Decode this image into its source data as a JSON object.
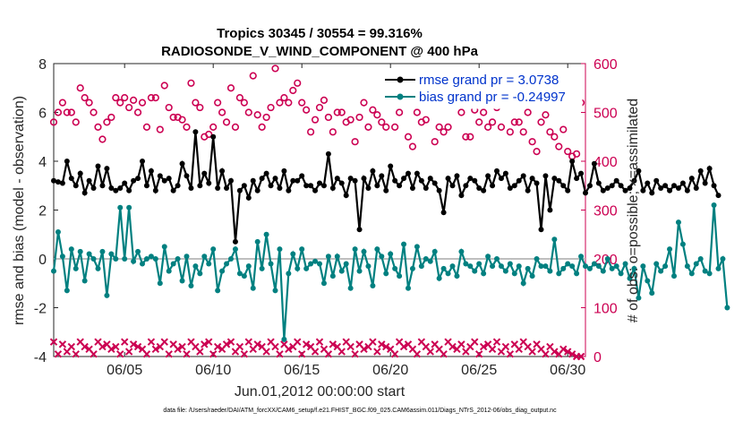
{
  "colors": {
    "rmse": "#000000",
    "bias": "#008080",
    "obs": "#cc0052",
    "zero": "#bfbfbf",
    "legend_text": "#0033cc",
    "axis": "#262626"
  },
  "chart_data": {
    "type": "line",
    "title_line1": "Tropics 30345 / 30554 = 99.316%",
    "title_line2": "RADIOSONDE_V_WIND_COMPONENT @ 400 hPa",
    "xlabel": "Jun.01,2012 00:00:00 start",
    "ylabel": "rmse and bias (model - observation)",
    "ylabel_right": "# of obs: o=possible; ×=assimilated",
    "xlim": [
      1,
      31
    ],
    "ylim": [
      -4,
      8
    ],
    "ylim_right": [
      0,
      600
    ],
    "x_ticks": [
      5,
      10,
      15,
      20,
      25,
      30
    ],
    "x_tick_labels": [
      "06/05",
      "06/10",
      "06/15",
      "06/20",
      "06/25",
      "06/30"
    ],
    "y_ticks": [
      -4,
      -2,
      0,
      2,
      4,
      6,
      8
    ],
    "y_tick_labels": [
      "-4",
      "-2",
      "0",
      "2",
      "4",
      "6",
      "8"
    ],
    "y_ticks_right": [
      0,
      100,
      200,
      300,
      400,
      500,
      600
    ],
    "y_tick_labels_right": [
      "0",
      "100",
      "200",
      "300",
      "400",
      "500",
      "600"
    ],
    "legend": [
      {
        "name": "rmse grand pr = 3.0738",
        "series": "rmse"
      },
      {
        "name": "bias grand pr = -0.24997",
        "series": "bias"
      }
    ],
    "series": [
      {
        "name": "rmse",
        "axis": "left",
        "start": 1.0,
        "step": 0.25,
        "values": [
          3.2,
          3.15,
          3.1,
          4.0,
          3.3,
          3.0,
          3.5,
          2.7,
          3.2,
          2.9,
          3.8,
          3.0,
          3.7,
          2.9,
          2.8,
          2.9,
          3.1,
          2.8,
          3.2,
          3.3,
          4.0,
          3.0,
          3.6,
          2.8,
          3.4,
          3.2,
          3.3,
          2.8,
          3.0,
          3.9,
          3.4,
          2.9,
          5.2,
          3.0,
          3.5,
          3.1,
          5.0,
          2.9,
          3.6,
          2.9,
          3.2,
          0.7,
          2.8,
          3.0,
          2.5,
          3.2,
          2.8,
          3.3,
          3.5,
          3.0,
          3.3,
          2.9,
          3.6,
          2.8,
          3.2,
          3.2,
          3.4,
          3.0,
          3.0,
          2.8,
          3.1,
          3.0,
          4.3,
          2.9,
          3.3,
          3.1,
          2.6,
          3.3,
          3.2,
          1.2,
          3.3,
          2.9,
          3.6,
          3.0,
          3.4,
          2.8,
          3.8,
          3.2,
          3.0,
          3.3,
          3.5,
          2.9,
          3.5,
          3.2,
          2.9,
          3.3,
          3.1,
          2.8,
          1.9,
          3.3,
          3.0,
          3.4,
          2.6,
          3.0,
          3.3,
          3.2,
          2.9,
          2.8,
          3.4,
          3.0,
          3.6,
          3.3,
          3.5,
          2.9,
          3.0,
          3.2,
          3.4,
          2.8,
          3.3,
          3.1,
          1.2,
          3.4,
          2.0,
          3.3,
          3.2,
          3.0,
          2.8,
          4.0,
          3.3,
          3.5,
          2.7,
          3.0,
          3.9,
          3.1,
          2.8,
          2.9,
          3.0,
          3.2,
          3.0,
          2.8,
          2.9,
          3.2,
          3.6,
          2.8,
          3.1,
          2.7,
          3.2,
          2.9,
          3.0,
          2.8,
          3.0,
          2.9,
          3.1,
          2.8,
          3.3,
          2.9,
          3.6,
          3.1,
          3.7,
          3.0,
          2.6
        ]
      },
      {
        "name": "bias",
        "axis": "left",
        "start": 1.0,
        "step": 0.25,
        "values": [
          -0.5,
          1.1,
          0.1,
          -1.3,
          0.4,
          -0.4,
          0.3,
          -0.9,
          0.2,
          0.0,
          -0.4,
          0.3,
          -1.5,
          0.2,
          0.0,
          2.1,
          0.0,
          2.1,
          -0.1,
          0.3,
          -0.2,
          0.0,
          0.1,
          0.0,
          -1.0,
          0.5,
          -0.5,
          -0.2,
          0.0,
          -0.9,
          0.1,
          -1.1,
          -0.3,
          -0.6,
          0.1,
          -0.2,
          0.4,
          -1.3,
          -0.5,
          -0.2,
          0.0,
          0.4,
          -0.6,
          -0.7,
          -0.3,
          -1.2,
          0.7,
          -0.4,
          1.0,
          -0.2,
          -1.3,
          0.4,
          -3.3,
          -0.6,
          0.2,
          -0.4,
          0.4,
          -0.4,
          -0.2,
          -0.1,
          -0.2,
          -1.0,
          0.1,
          -0.7,
          0.1,
          -0.5,
          -0.2,
          -1.2,
          0.4,
          -0.5,
          0.3,
          -0.3,
          -1.1,
          0.4,
          0.1,
          -0.6,
          0.2,
          -0.4,
          -0.7,
          0.6,
          -1.2,
          -0.4,
          0.5,
          -0.3,
          0.0,
          -0.1,
          0.3,
          -0.8,
          -0.4,
          -0.6,
          -0.3,
          -0.7,
          0.3,
          -0.2,
          -0.3,
          -0.5,
          -0.2,
          -0.6,
          0.1,
          -0.3,
          0.0,
          -0.3,
          -0.5,
          -0.2,
          -0.6,
          -0.3,
          -1.0,
          -0.4,
          -0.7,
          0.0,
          -0.3,
          -0.3,
          -0.5,
          0.8,
          -0.6,
          -0.4,
          -0.2,
          -0.3,
          -0.6,
          0.1,
          -0.3,
          -0.4,
          -0.2,
          -0.3,
          -0.5,
          0.0,
          -0.4,
          -0.3,
          -0.6,
          -0.2,
          -0.8,
          -0.4,
          -1.6,
          -0.3,
          -0.9,
          -1.4,
          -0.2,
          -0.5,
          -0.3,
          0.4,
          -0.7,
          1.5,
          0.6,
          -0.3,
          -0.6,
          -0.2,
          0.0,
          -0.5,
          -0.6,
          2.2,
          -0.4,
          0.0,
          -2.0
        ]
      },
      {
        "name": "obs possible (upper)",
        "axis": "right",
        "marker": "o",
        "x": [
          1,
          1.25,
          1.5,
          1.75,
          2,
          2.25,
          2.5,
          2.75,
          3,
          3.25,
          3.5,
          3.75,
          4,
          4.25,
          4.5,
          4.75,
          5,
          5.25,
          5.5,
          5.75,
          6,
          6.25,
          6.5,
          6.75,
          7,
          7.25,
          7.5,
          7.75,
          8,
          8.25,
          8.5,
          8.75,
          9,
          9.25,
          9.5,
          9.75,
          10,
          10.25,
          10.5,
          10.75,
          11,
          11.25,
          11.5,
          11.75,
          12,
          12.25,
          12.5,
          12.75,
          13,
          13.25,
          13.5,
          13.75,
          14,
          14.25,
          14.5,
          14.75,
          15,
          15.25,
          15.5,
          15.75,
          16,
          16.25,
          16.5,
          16.75,
          17,
          17.25,
          17.5,
          17.75,
          18,
          18.25,
          18.5,
          18.75,
          19,
          19.25,
          19.5,
          19.75,
          20,
          20.25,
          20.5,
          20.75,
          21,
          21.25,
          21.5,
          21.75,
          22,
          22.25,
          22.5,
          22.75,
          23,
          23.25,
          23.5,
          23.75,
          24,
          24.25,
          24.5,
          24.75,
          25,
          25.25,
          25.5,
          25.75,
          26,
          26.25,
          26.5,
          26.75,
          27,
          27.25,
          27.5,
          27.75,
          28,
          28.25,
          28.5,
          28.75,
          29,
          29.25,
          29.5,
          29.75,
          30,
          30.25,
          30.5,
          30.75
        ],
        "values": [
          480,
          500,
          520,
          500,
          500,
          480,
          550,
          530,
          520,
          500,
          470,
          445,
          480,
          490,
          530,
          520,
          530,
          510,
          525,
          500,
          520,
          470,
          530,
          530,
          465,
          555,
          510,
          490,
          490,
          485,
          470,
          560,
          520,
          510,
          450,
          455,
          470,
          520,
          500,
          480,
          550,
          470,
          530,
          520,
          500,
          575,
          495,
          470,
          490,
          510,
          590,
          520,
          530,
          520,
          545,
          560,
          520,
          505,
          460,
          485,
          510,
          525,
          490,
          460,
          500,
          500,
          480,
          485,
          440,
          490,
          520,
          470,
          505,
          495,
          480,
          470,
          520,
          470,
          500,
          520,
          450,
          430,
          500,
          480,
          485,
          550,
          440,
          470,
          460,
          470,
          530,
          520,
          500,
          450,
          450,
          505,
          480,
          500,
          470,
          480,
          510,
          470,
          520,
          460,
          480,
          480,
          460,
          500,
          440,
          420,
          480,
          495,
          460,
          450,
          430,
          465,
          420,
          410,
          415,
          520
        ]
      },
      {
        "name": "obs assimilated (lower)",
        "axis": "right",
        "marker": "x",
        "x": [
          1,
          1.25,
          1.5,
          1.75,
          2,
          2.25,
          2.5,
          2.75,
          3,
          3.25,
          3.5,
          3.75,
          4,
          4.25,
          4.5,
          4.75,
          5,
          5.25,
          5.5,
          5.75,
          6,
          6.25,
          6.5,
          6.75,
          7,
          7.25,
          7.5,
          7.75,
          8,
          8.25,
          8.5,
          8.75,
          9,
          9.25,
          9.5,
          9.75,
          10,
          10.25,
          10.5,
          10.75,
          11,
          11.25,
          11.5,
          11.75,
          12,
          12.25,
          12.5,
          12.75,
          13,
          13.25,
          13.5,
          13.75,
          14,
          14.25,
          14.5,
          14.75,
          15,
          15.25,
          15.5,
          15.75,
          16,
          16.25,
          16.5,
          16.75,
          17,
          17.25,
          17.5,
          17.75,
          18,
          18.25,
          18.5,
          18.75,
          19,
          19.25,
          19.5,
          19.75,
          20,
          20.25,
          20.5,
          20.75,
          21,
          21.25,
          21.5,
          21.75,
          22,
          22.25,
          22.5,
          22.75,
          23,
          23.25,
          23.5,
          23.75,
          24,
          24.25,
          24.5,
          24.75,
          25,
          25.25,
          25.5,
          25.75,
          26,
          26.25,
          26.5,
          26.75,
          27,
          27.25,
          27.5,
          27.75,
          28,
          28.25,
          28.5,
          28.75,
          29,
          29.25,
          29.5,
          29.75,
          30,
          30.25,
          30.5,
          30.75
        ],
        "values": [
          30,
          5,
          25,
          10,
          20,
          5,
          30,
          20,
          15,
          5,
          30,
          20,
          25,
          15,
          20,
          5,
          30,
          10,
          25,
          20,
          15,
          5,
          30,
          15,
          20,
          30,
          5,
          25,
          15,
          20,
          5,
          30,
          20,
          10,
          25,
          30,
          5,
          20,
          15,
          25,
          30,
          10,
          20,
          5,
          30,
          15,
          25,
          20,
          10,
          30,
          20,
          5,
          25,
          15,
          20,
          30,
          5,
          25,
          20,
          10,
          30,
          15,
          5,
          25,
          20,
          10,
          30,
          20,
          5,
          25,
          15,
          20,
          30,
          10,
          25,
          20,
          15,
          5,
          30,
          20,
          25,
          15,
          5,
          30,
          20,
          10,
          25,
          15,
          5,
          30,
          20,
          15,
          25,
          10,
          20,
          30,
          5,
          20,
          25,
          15,
          30,
          10,
          20,
          5,
          25,
          15,
          30,
          20,
          10,
          25,
          15,
          5,
          20,
          10,
          5,
          15,
          10,
          5,
          0,
          0
        ]
      }
    ]
  },
  "footer_text": "data file: /Users/raeder/DAI/ATM_forcXX/CAM6_setup/f.e21.FHIST_BGC.f09_025.CAM6assim.011/Diags_NTrS_2012-06/obs_diag_output.nc"
}
